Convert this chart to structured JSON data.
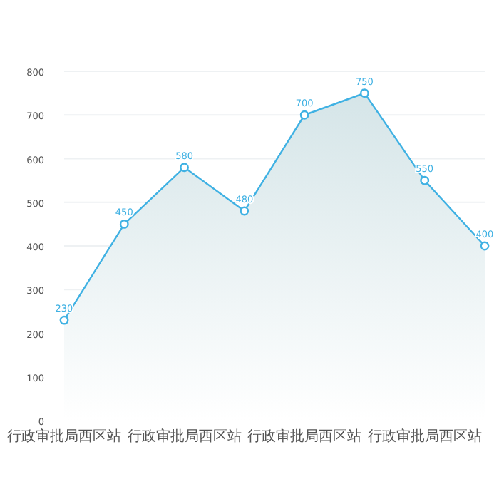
{
  "chart_data": {
    "type": "area",
    "categories": [
      "行政审批局西区站",
      null,
      "行政审批局西区站",
      null,
      "行政审批局西区站",
      null,
      "行政审批局西区站",
      null
    ],
    "values": [
      230,
      450,
      580,
      480,
      700,
      750,
      550,
      400
    ],
    "color": "#3fb1e3",
    "ylim": [
      0,
      800
    ],
    "yticks": [
      0,
      100,
      200,
      300,
      400,
      500,
      600,
      700,
      800
    ],
    "grid": "y",
    "marker": "circle",
    "data_labels": true
  }
}
